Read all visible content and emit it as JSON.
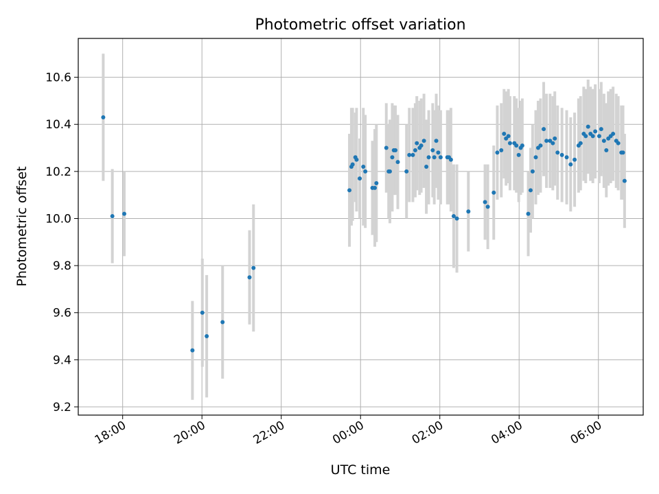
{
  "chart_data": {
    "type": "scatter",
    "title": "Photometric offset variation",
    "xlabel": "UTC time",
    "ylabel": "Photometric offset",
    "x_unit": "hours",
    "xlim": [
      16.88,
      31.13
    ],
    "ylim": [
      9.165,
      10.765
    ],
    "grid": true,
    "colors": {
      "point": "#1f77b4",
      "errorbar": "#d3d3d3",
      "grid": "#b0b0b0",
      "axes": "#000000"
    },
    "x_ticks": [
      {
        "value": 18,
        "label": "18:00"
      },
      {
        "value": 20,
        "label": "20:00"
      },
      {
        "value": 22,
        "label": "22:00"
      },
      {
        "value": 24,
        "label": "00:00"
      },
      {
        "value": 26,
        "label": "02:00"
      },
      {
        "value": 28,
        "label": "04:00"
      },
      {
        "value": 30,
        "label": "06:00"
      }
    ],
    "y_ticks": [
      {
        "value": 9.2,
        "label": "9.2"
      },
      {
        "value": 9.4,
        "label": "9.4"
      },
      {
        "value": 9.6,
        "label": "9.6"
      },
      {
        "value": 9.8,
        "label": "9.8"
      },
      {
        "value": 10.0,
        "label": "10.0"
      },
      {
        "value": 10.2,
        "label": "10.2"
      },
      {
        "value": 10.4,
        "label": "10.4"
      },
      {
        "value": 10.6,
        "label": "10.6"
      }
    ],
    "series": [
      {
        "points": [
          [
            17.51,
            10.43,
            0.27
          ],
          [
            17.74,
            10.01,
            0.2
          ],
          [
            18.04,
            10.02,
            0.18
          ],
          [
            19.76,
            9.44,
            0.21
          ],
          [
            20.01,
            9.6,
            0.23
          ],
          [
            20.12,
            9.5,
            0.26
          ],
          [
            20.52,
            9.56,
            0.24
          ],
          [
            21.2,
            9.75,
            0.2
          ],
          [
            21.3,
            9.79,
            0.27
          ],
          [
            23.72,
            10.12,
            0.24
          ],
          [
            23.77,
            10.22,
            0.25
          ],
          [
            23.8,
            10.23,
            0.24
          ],
          [
            23.87,
            10.26,
            0.19
          ],
          [
            23.9,
            10.25,
            0.22
          ],
          [
            23.98,
            10.17,
            0.17
          ],
          [
            24.07,
            10.22,
            0.25
          ],
          [
            24.12,
            10.2,
            0.24
          ],
          [
            24.3,
            10.13,
            0.2
          ],
          [
            24.36,
            10.13,
            0.25
          ],
          [
            24.4,
            10.15,
            0.25
          ],
          [
            24.65,
            10.3,
            0.19
          ],
          [
            24.71,
            10.2,
            0.2
          ],
          [
            24.74,
            10.2,
            0.22
          ],
          [
            24.8,
            10.26,
            0.23
          ],
          [
            24.84,
            10.29,
            0.19
          ],
          [
            24.88,
            10.29,
            0.19
          ],
          [
            24.94,
            10.24,
            0.2
          ],
          [
            25.16,
            10.2,
            0.2
          ],
          [
            25.23,
            10.27,
            0.2
          ],
          [
            25.32,
            10.27,
            0.2
          ],
          [
            25.38,
            10.29,
            0.2
          ],
          [
            25.42,
            10.32,
            0.2
          ],
          [
            25.49,
            10.3,
            0.2
          ],
          [
            25.53,
            10.31,
            0.2
          ],
          [
            25.6,
            10.33,
            0.2
          ],
          [
            25.66,
            10.22,
            0.2
          ],
          [
            25.72,
            10.26,
            0.2
          ],
          [
            25.82,
            10.29,
            0.2
          ],
          [
            25.86,
            10.26,
            0.2
          ],
          [
            25.91,
            10.33,
            0.2
          ],
          [
            25.96,
            10.28,
            0.2
          ],
          [
            26.02,
            10.26,
            0.2
          ],
          [
            26.19,
            10.26,
            0.2
          ],
          [
            26.23,
            10.26,
            0.2
          ],
          [
            26.28,
            10.25,
            0.22
          ],
          [
            26.35,
            10.01,
            0.22
          ],
          [
            26.43,
            10.0,
            0.23
          ],
          [
            26.72,
            10.03,
            0.17
          ],
          [
            27.14,
            10.07,
            0.16
          ],
          [
            27.21,
            10.05,
            0.18
          ],
          [
            27.36,
            10.11,
            0.2
          ],
          [
            27.45,
            10.28,
            0.2
          ],
          [
            27.55,
            10.29,
            0.2
          ],
          [
            27.62,
            10.36,
            0.19
          ],
          [
            27.67,
            10.34,
            0.2
          ],
          [
            27.73,
            10.35,
            0.2
          ],
          [
            27.77,
            10.32,
            0.2
          ],
          [
            27.88,
            10.32,
            0.2
          ],
          [
            27.93,
            10.31,
            0.2
          ],
          [
            27.99,
            10.27,
            0.2
          ],
          [
            28.04,
            10.3,
            0.2
          ],
          [
            28.08,
            10.31,
            0.2
          ],
          [
            28.23,
            10.02,
            0.18
          ],
          [
            28.29,
            10.12,
            0.18
          ],
          [
            28.34,
            10.2,
            0.2
          ],
          [
            28.42,
            10.26,
            0.2
          ],
          [
            28.48,
            10.3,
            0.2
          ],
          [
            28.54,
            10.31,
            0.2
          ],
          [
            28.62,
            10.38,
            0.2
          ],
          [
            28.69,
            10.33,
            0.2
          ],
          [
            28.78,
            10.33,
            0.2
          ],
          [
            28.85,
            10.32,
            0.2
          ],
          [
            28.9,
            10.34,
            0.2
          ],
          [
            28.97,
            10.28,
            0.2
          ],
          [
            29.08,
            10.27,
            0.2
          ],
          [
            29.2,
            10.26,
            0.2
          ],
          [
            29.3,
            10.23,
            0.2
          ],
          [
            29.4,
            10.25,
            0.2
          ],
          [
            29.5,
            10.31,
            0.2
          ],
          [
            29.55,
            10.32,
            0.2
          ],
          [
            29.63,
            10.36,
            0.2
          ],
          [
            29.68,
            10.35,
            0.2
          ],
          [
            29.74,
            10.39,
            0.2
          ],
          [
            29.8,
            10.36,
            0.2
          ],
          [
            29.86,
            10.35,
            0.2
          ],
          [
            29.92,
            10.37,
            0.2
          ],
          [
            30.02,
            10.35,
            0.2
          ],
          [
            30.07,
            10.38,
            0.2
          ],
          [
            30.14,
            10.33,
            0.2
          ],
          [
            30.2,
            10.29,
            0.2
          ],
          [
            30.25,
            10.34,
            0.2
          ],
          [
            30.31,
            10.35,
            0.2
          ],
          [
            30.37,
            10.36,
            0.2
          ],
          [
            30.45,
            10.33,
            0.2
          ],
          [
            30.5,
            10.32,
            0.2
          ],
          [
            30.58,
            10.28,
            0.2
          ],
          [
            30.62,
            10.28,
            0.2
          ],
          [
            30.66,
            10.16,
            0.2
          ]
        ]
      }
    ]
  }
}
